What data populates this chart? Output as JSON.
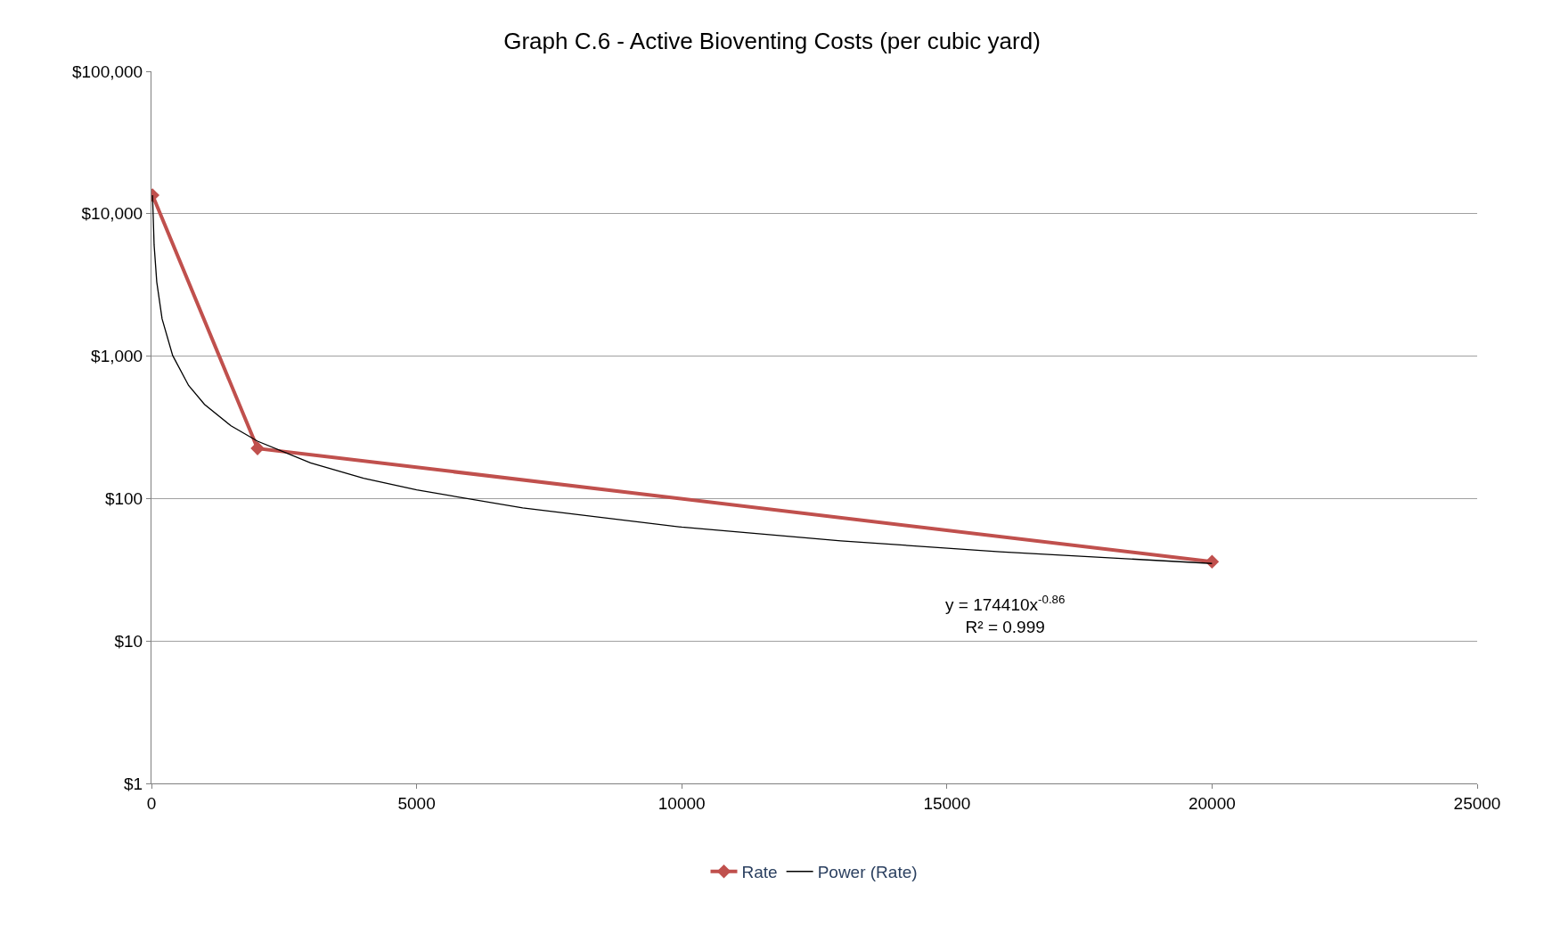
{
  "chart_data": {
    "type": "line",
    "title": "Graph C.6 - Active Bioventing Costs (per cubic yard)",
    "series": [
      {
        "name": "Rate",
        "color": "#c0504d",
        "x": [
          20,
          2000,
          20000
        ],
        "values": [
          13500,
          225,
          36
        ],
        "marker": "diamond",
        "line_style": "solid"
      },
      {
        "name": "Power (Rate)",
        "color": "#000000",
        "x": [
          20,
          50,
          100,
          200,
          400,
          700,
          1000,
          1500,
          2000,
          3000,
          4000,
          5000,
          7000,
          10000,
          13000,
          16000,
          20000
        ],
        "values": [
          13500,
          6030,
          3320,
          1830,
          1010,
          623,
          458,
          324,
          253,
          178,
          139,
          115,
          86,
          63,
          50.5,
          42.3,
          35
        ],
        "marker": "none",
        "line_style": "solid"
      }
    ],
    "xlim": [
      0,
      25000
    ],
    "xticks": [
      0,
      5000,
      10000,
      15000,
      20000,
      25000
    ],
    "ylim": [
      1,
      100000
    ],
    "yticks": [
      {
        "value": 1,
        "label": "$1"
      },
      {
        "value": 10,
        "label": "$10"
      },
      {
        "value": 100,
        "label": "$100"
      },
      {
        "value": 1000,
        "label": "$1,000"
      },
      {
        "value": 10000,
        "label": "$10,000"
      },
      {
        "value": 100000,
        "label": "$100,000"
      }
    ],
    "log": "y",
    "grid": "y",
    "legend": "bottom",
    "annotations": [
      "y = 174410x$^{-0.86}$\nR² = 0.999"
    ]
  }
}
